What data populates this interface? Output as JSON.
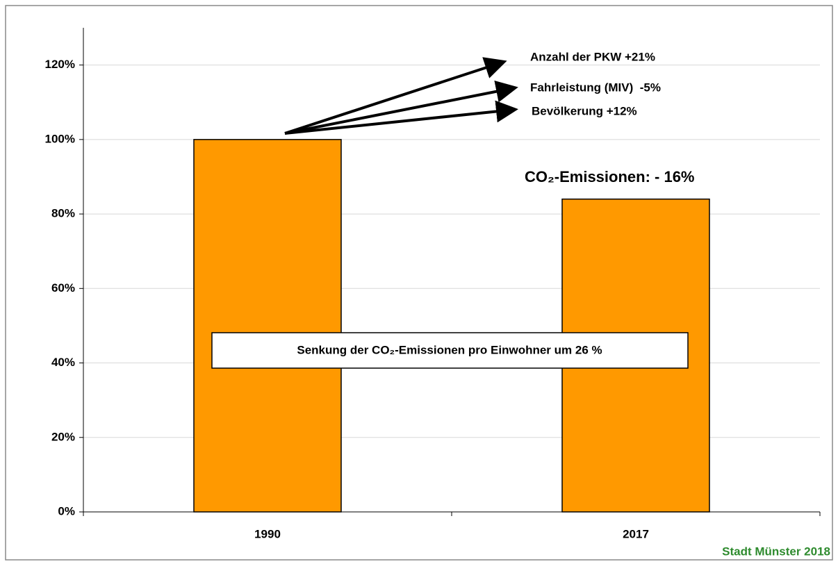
{
  "chart_data": {
    "type": "bar",
    "categories": [
      "1990",
      "2017"
    ],
    "values": [
      100,
      84
    ],
    "color": "#ff9900",
    "ylim": [
      0,
      130
    ],
    "yticks": [
      {
        "value": 0,
        "label": "0%"
      },
      {
        "value": 20,
        "label": "20%"
      },
      {
        "value": 40,
        "label": "40%"
      },
      {
        "value": 60,
        "label": "60%"
      },
      {
        "value": 80,
        "label": "80%"
      },
      {
        "value": 100,
        "label": "100%"
      },
      {
        "value": 120,
        "label": "120%"
      }
    ],
    "grid": true,
    "annotations": [
      "Anzahl der PKW +21%",
      "Fahrleistung (MIV)  -5%",
      "Bevölkerung +12%",
      "CO₂-Emissionen: - 16%",
      "Senkung der CO₂-Emissionen pro Einwohner um 26 %"
    ],
    "source": "Stadt Münster 2018"
  }
}
